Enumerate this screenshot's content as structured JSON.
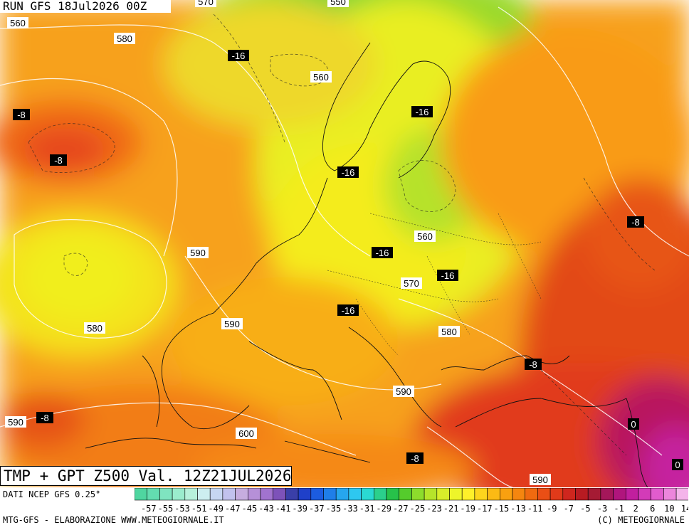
{
  "header": {
    "run": "RUN GFS 18Jul2026 00Z"
  },
  "title": {
    "valid": "TMP + GPT Z500 Val. 12Z21JUL2026"
  },
  "footer": {
    "source": "DATI NCEP GFS 0.25°",
    "elaboration": "MTG-GFS - ELABORAZIONE WWW.METEOGIORNALE.IT",
    "copyright": "(C) METEOGIORNALE"
  },
  "map_labels": {
    "gpt": [
      "560",
      "580",
      "590",
      "590",
      "580",
      "570",
      "550",
      "560",
      "560",
      "570",
      "580",
      "590",
      "590",
      "600",
      "590"
    ],
    "tmp": [
      "-16",
      "-16",
      "-16",
      "-16",
      "-16",
      "-16",
      "-8",
      "-8",
      "-8",
      "-8",
      "-8",
      "-8",
      "0",
      "0"
    ]
  },
  "legend": {
    "ticks": [
      "-57",
      "-55",
      "-53",
      "-51",
      "-49",
      "-47",
      "-45",
      "-43",
      "-41",
      "-39",
      "-37",
      "-35",
      "-33",
      "-31",
      "-29",
      "-27",
      "-25",
      "-23",
      "-21",
      "-19",
      "-17",
      "-15",
      "-13",
      "-11",
      "-9",
      "-7",
      "-5",
      "-3",
      "-1",
      "2",
      "6",
      "10",
      "14"
    ],
    "colors": [
      "#4fd6a0",
      "#63ddb0",
      "#7fe4c0",
      "#9aeccd",
      "#b7f1db",
      "#cdeef0",
      "#c6d6f2",
      "#c2c2ee",
      "#c6addf",
      "#b690d8",
      "#a173cf",
      "#7d52b9",
      "#3a3fa8",
      "#1f40c9",
      "#1c5cdf",
      "#1f7ee8",
      "#26a6ee",
      "#2ec8f0",
      "#2ad9d2",
      "#2bd08c",
      "#27c24a",
      "#55cc2c",
      "#8ddc2c",
      "#b6e42a",
      "#d8ee2a",
      "#eef52a",
      "#fff02a",
      "#fdd51d",
      "#fbba14",
      "#f9a010",
      "#f5860f",
      "#f06a10",
      "#ea4f15",
      "#e03a1a",
      "#cf261e",
      "#b81b22",
      "#a51b34",
      "#a4175a",
      "#b0157d",
      "#c11f9e",
      "#d33bb8",
      "#e15ccd",
      "#ec86dc",
      "#f4b4ea"
    ]
  }
}
